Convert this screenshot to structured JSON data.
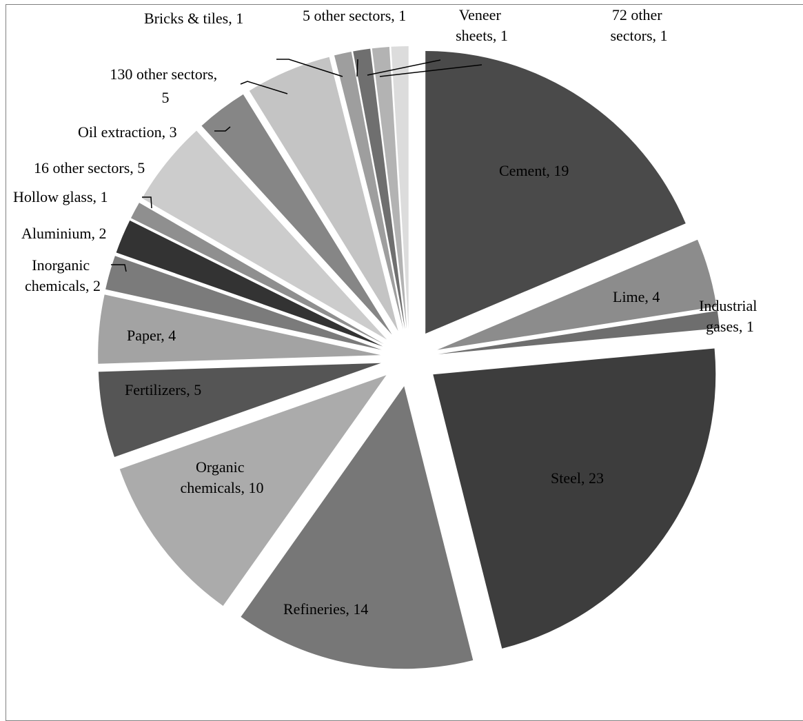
{
  "chart_data": {
    "type": "pie",
    "title": "",
    "exploded": true,
    "start_angle_deg": 0,
    "direction": "clockwise",
    "slices": [
      {
        "label": "Cement",
        "value": 19,
        "display": "Cement, 19",
        "color": "#4a4a4a"
      },
      {
        "label": "Lime",
        "value": 4,
        "display": "Lime, 4",
        "color": "#8c8c8c"
      },
      {
        "label": "Industrial gases",
        "value": 1,
        "display": "Industrial gases, 1",
        "color": "#6e6e6e"
      },
      {
        "label": "Steel",
        "value": 23,
        "display": "Steel, 23",
        "color": "#3d3d3d"
      },
      {
        "label": "Refineries",
        "value": 14,
        "display": "Refineries, 14",
        "color": "#777777"
      },
      {
        "label": "Organic chemicals",
        "value": 10,
        "display": "Organic chemicals, 10",
        "color": "#ababab"
      },
      {
        "label": "Fertilizers",
        "value": 5,
        "display": "Fertilizers, 5",
        "color": "#555555"
      },
      {
        "label": "Paper",
        "value": 4,
        "display": "Paper, 4",
        "color": "#a3a3a3"
      },
      {
        "label": "Inorganic chemicals",
        "value": 2,
        "display": "Inorganic chemicals, 2",
        "color": "#7b7b7b"
      },
      {
        "label": "Aluminium",
        "value": 2,
        "display": "Aluminium, 2",
        "color": "#333333"
      },
      {
        "label": "Hollow glass",
        "value": 1,
        "display": "Hollow glass, 1",
        "color": "#8f8f8f"
      },
      {
        "label": "16 other sectors",
        "value": 5,
        "display": "16 other sectors, 5",
        "color": "#cccccc"
      },
      {
        "label": "Oil extraction",
        "value": 3,
        "display": "Oil extraction, 3",
        "color": "#868686"
      },
      {
        "label": "130 other sectors",
        "value": 5,
        "display": "130 other sectors, 5",
        "color": "#c4c4c4"
      },
      {
        "label": "Bricks & tiles",
        "value": 1,
        "display": "Bricks & tiles, 1",
        "color": "#9e9e9e"
      },
      {
        "label": "5 other sectors",
        "value": 1,
        "display": "5 other sectors, 1",
        "color": "#6f6f6f"
      },
      {
        "label": "Veneer sheets",
        "value": 1,
        "display": "Veneer sheets, 1",
        "color": "#b3b3b3"
      },
      {
        "label": "72 other sectors",
        "value": 1,
        "display": "72 other sectors, 1",
        "color": "#dcdcdc"
      }
    ]
  }
}
